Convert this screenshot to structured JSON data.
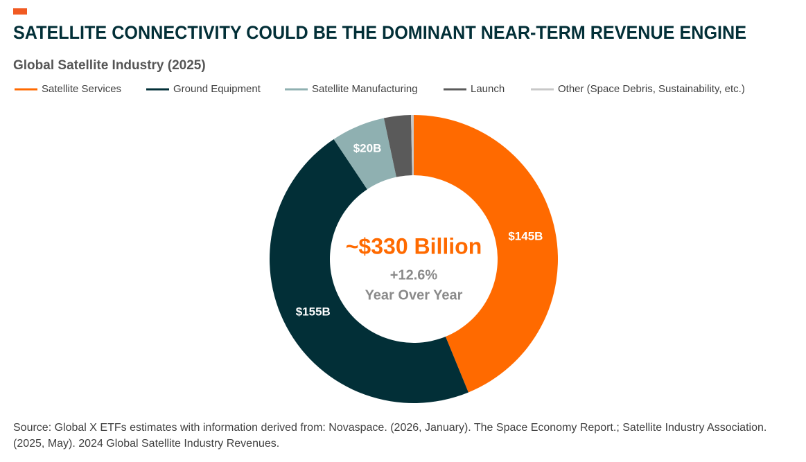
{
  "chart_data": {
    "type": "pie",
    "title": "SATELLITE CONNECTIVITY COULD BE THE DOMINANT NEAR-TERM REVENUE ENGINE",
    "subtitle": "Global Satellite Industry (2025)",
    "series": [
      {
        "name": "Satellite Services",
        "color": "#ff6a00",
        "values": [
          145
        ],
        "value_labels": [
          "$145B"
        ]
      },
      {
        "name": "Ground Equipment",
        "color": "#022f37",
        "values": [
          155
        ],
        "value_labels": [
          "$155B"
        ]
      },
      {
        "name": "Satellite Manufacturing",
        "color": "#8fb0b1",
        "values": [
          20
        ],
        "value_labels": [
          "$20B"
        ]
      },
      {
        "name": "Launch",
        "color": "#5a5a5a",
        "values": [
          10
        ]
      },
      {
        "name": "Other (Space Debris, Sustainability, etc.)",
        "color": "#c8c8c8",
        "values": [
          1
        ]
      }
    ],
    "center_title": "~$330 Billion",
    "center_change": "+12.6%",
    "center_caption": "Year Over Year",
    "source": "Source: Global X ETFs estimates with information derived from: Novaspace. (2026, January). The Space Economy Report.; Satellite Industry Association. (2025, May). 2024 Global Satellite Industry Revenues."
  }
}
